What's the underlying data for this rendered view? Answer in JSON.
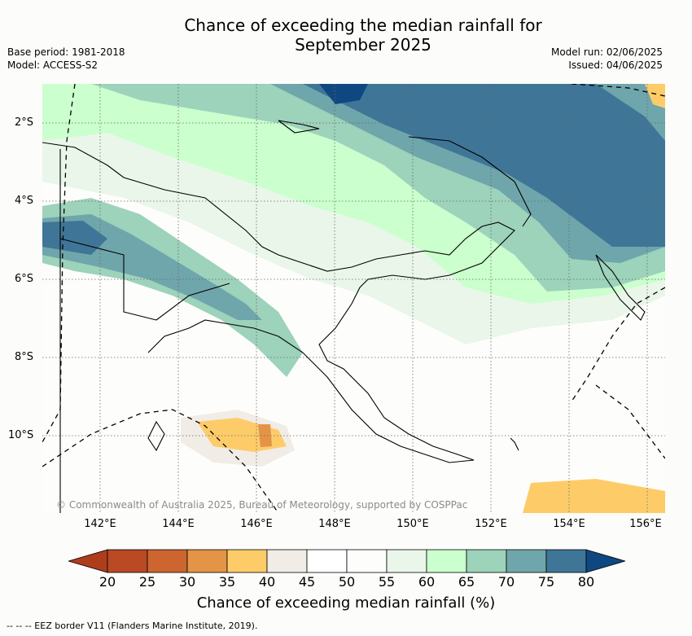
{
  "header": {
    "title_line1": "Chance of exceeding the median rainfall for",
    "title_line2": "September 2025",
    "base_period": "Base period: 1981-2018",
    "model": "Model: ACCESS-S2",
    "model_run": "Model run: 02/06/2025",
    "issued": "Issued: 04/06/2025"
  },
  "map": {
    "y_ticks": [
      "2°S",
      "4°S",
      "6°S",
      "8°S",
      "10°S"
    ],
    "x_ticks": [
      "142°E",
      "144°E",
      "146°E",
      "148°E",
      "150°E",
      "152°E",
      "154°E",
      "156°E"
    ],
    "copyright": "© Commonwealth of Australia 2025, Bureau of Meteorology, supported by COSPPac"
  },
  "legend": {
    "ticks": [
      "20",
      "25",
      "30",
      "35",
      "40",
      "45",
      "50",
      "55",
      "60",
      "65",
      "70",
      "75",
      "80"
    ],
    "colors": [
      "#ae3d1c",
      "#b94a24",
      "#cc6530",
      "#e39447",
      "#fdcc69",
      "#f1ece6",
      "#ffffff",
      "#fdfefc",
      "#eaf6ea",
      "#cbffcd",
      "#9dd2bb",
      "#6fa6ab",
      "#3f7697",
      "#0f4880"
    ],
    "label": "Chance of exceeding median rainfall (%)",
    "eez_note": "-- -- -- EEZ border V11 (Flanders Marine Institute, 2019)."
  }
}
